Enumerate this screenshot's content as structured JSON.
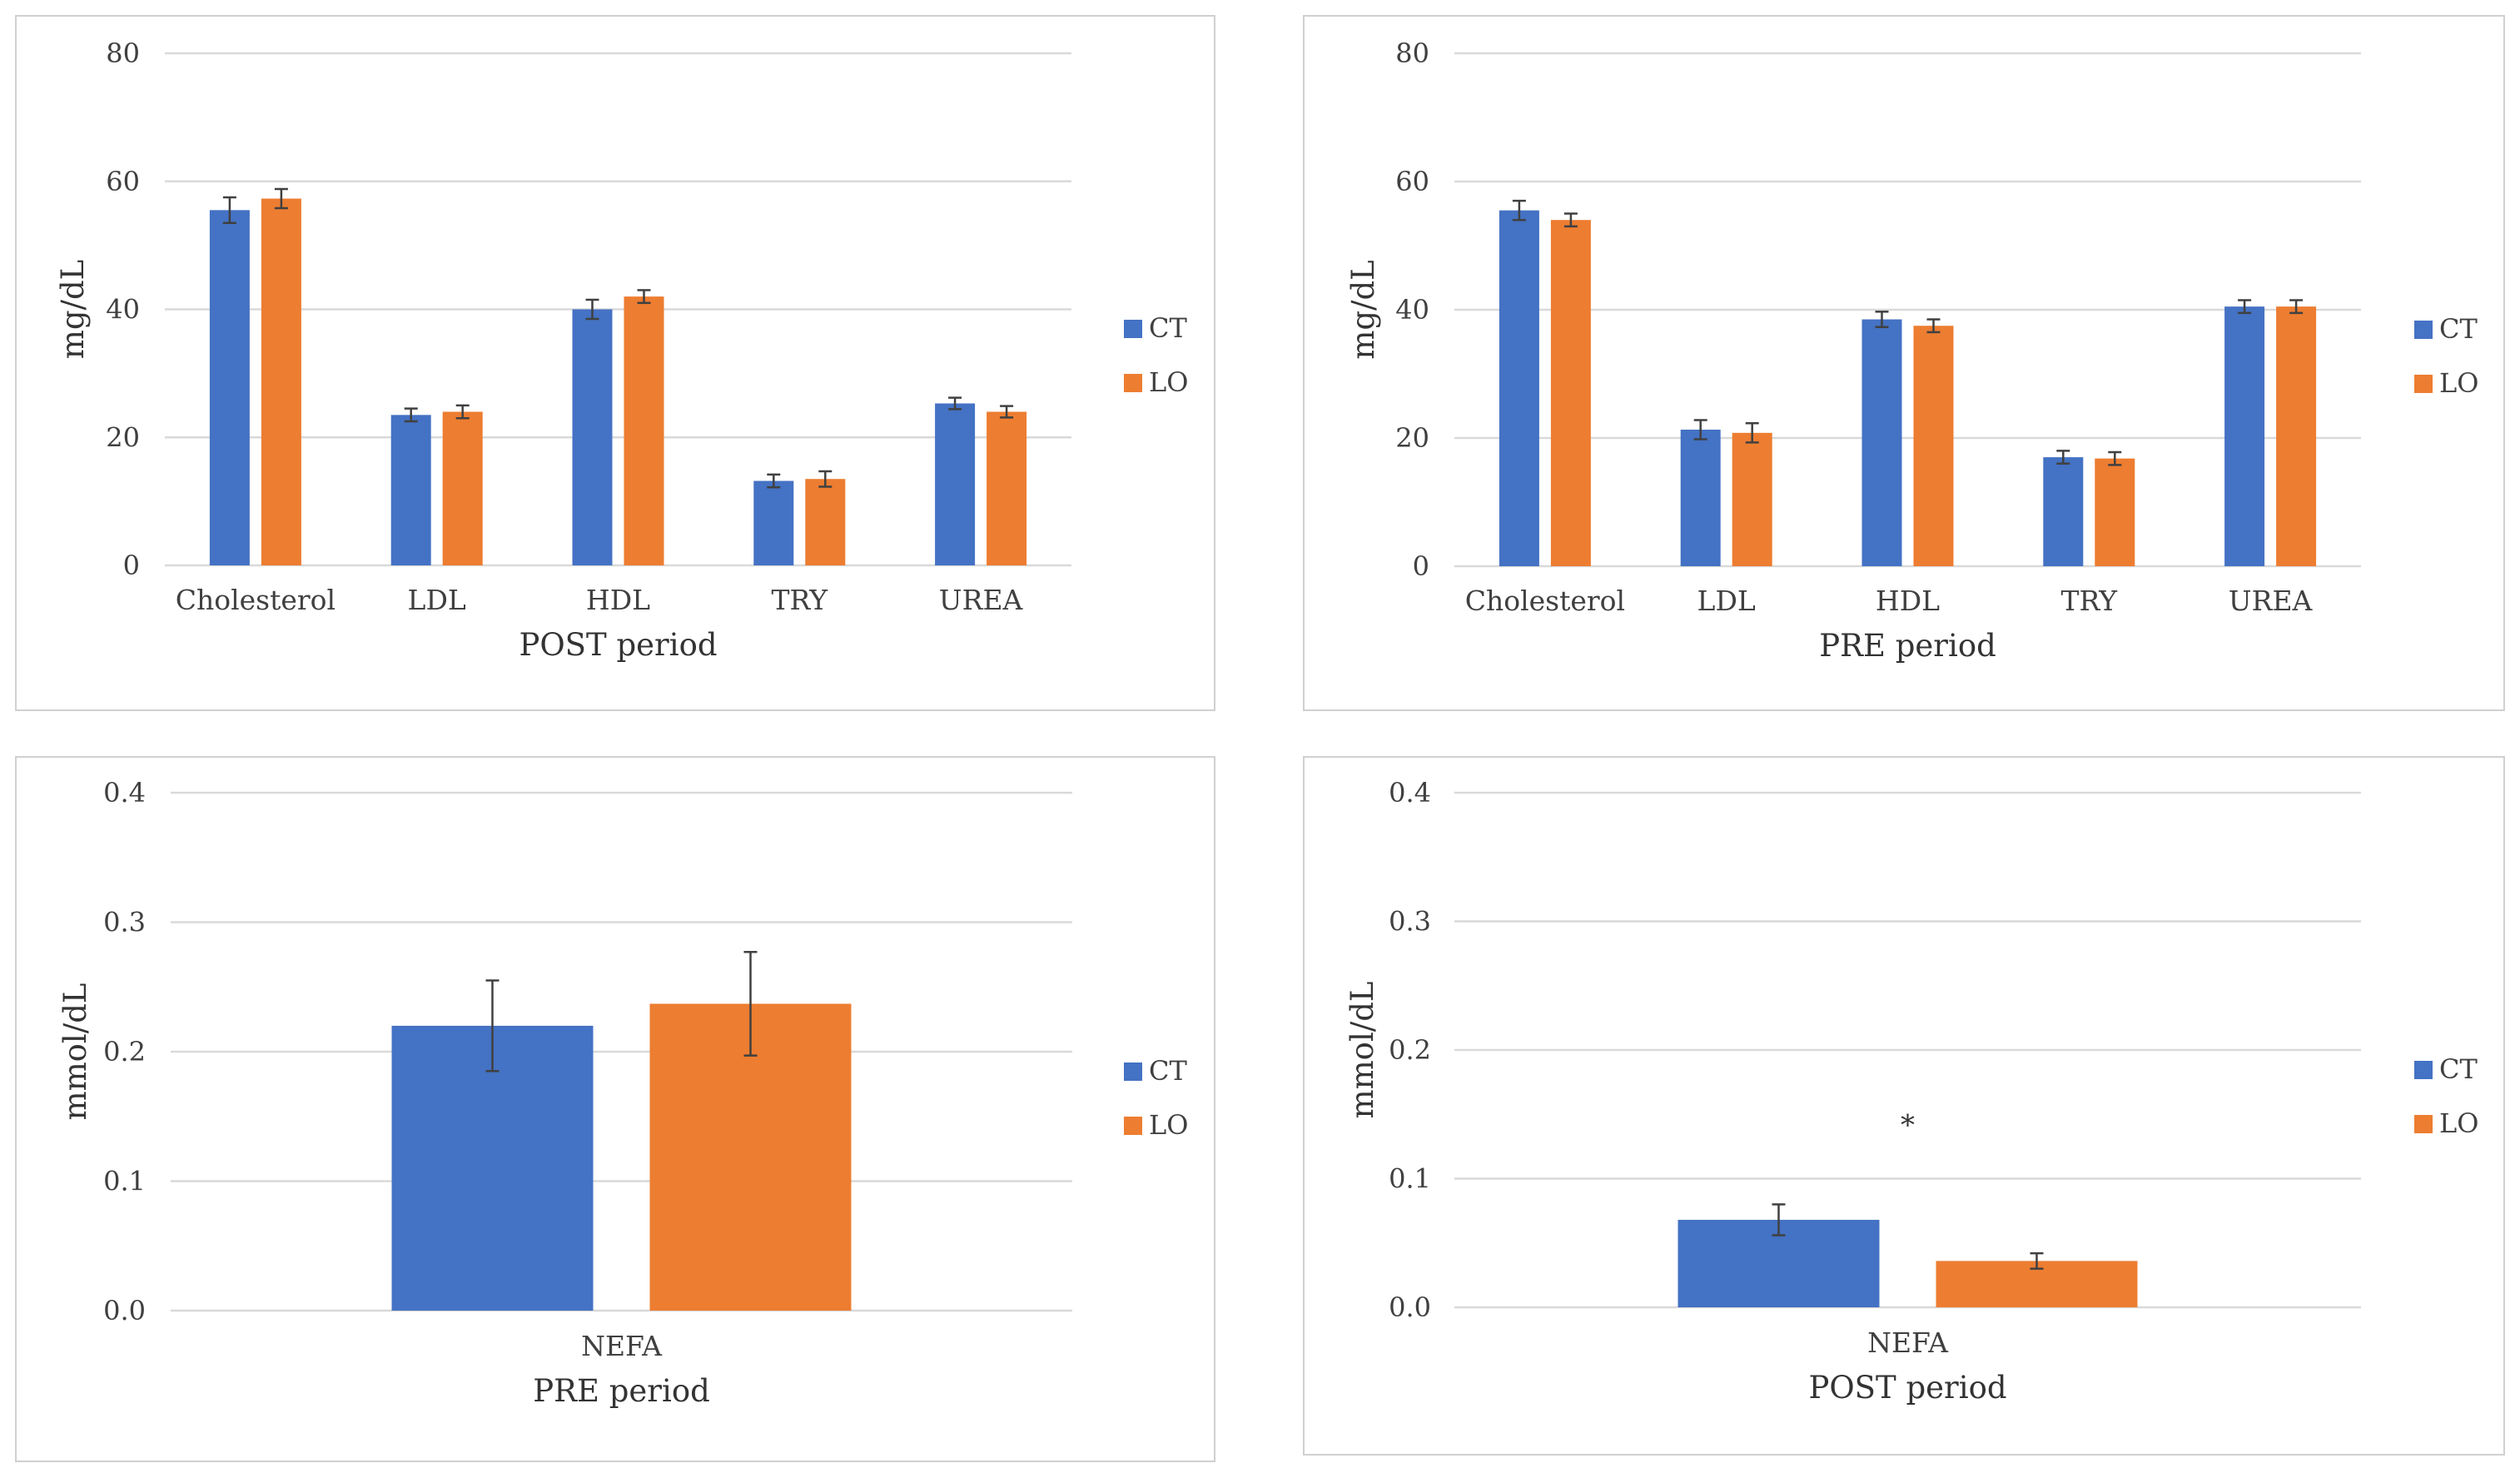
{
  "colors": {
    "CT": "#4472C4",
    "LO": "#ED7D31",
    "grid": "#D9D9D9",
    "errorbar": "#404040"
  },
  "chart_data": [
    {
      "type": "bar",
      "categories": [
        "Cholesterol",
        "LDL",
        "HDL",
        "TRY",
        "UREA"
      ],
      "series": [
        {
          "name": "CT",
          "values": [
            55.5,
            23.5,
            40.0,
            13.2,
            25.3
          ],
          "errors": [
            2.0,
            1.0,
            1.5,
            1.0,
            0.9
          ]
        },
        {
          "name": "LO",
          "values": [
            57.3,
            24.0,
            42.0,
            13.5,
            24.0
          ],
          "errors": [
            1.5,
            1.0,
            1.0,
            1.2,
            0.9
          ]
        }
      ],
      "xlabel": "POST period",
      "ylabel": "mg/dL",
      "ylim": [
        0,
        80
      ],
      "yticks": [
        "0",
        "20",
        "40",
        "60",
        "80"
      ],
      "grid": true,
      "legend_position": "right",
      "annotations": []
    },
    {
      "type": "bar",
      "categories": [
        "Cholesterol",
        "LDL",
        "HDL",
        "TRY",
        "UREA"
      ],
      "series": [
        {
          "name": "CT",
          "values": [
            55.5,
            21.3,
            38.5,
            17.0,
            40.5
          ],
          "errors": [
            1.5,
            1.5,
            1.2,
            1.0,
            1.0
          ]
        },
        {
          "name": "LO",
          "values": [
            54.0,
            20.8,
            37.5,
            16.8,
            40.5
          ],
          "errors": [
            1.0,
            1.5,
            1.0,
            1.0,
            1.0
          ]
        }
      ],
      "xlabel": "PRE period",
      "ylabel": "mg/dL",
      "ylim": [
        0,
        80
      ],
      "yticks": [
        "0",
        "20",
        "40",
        "60",
        "80"
      ],
      "grid": true,
      "legend_position": "right",
      "annotations": []
    },
    {
      "type": "bar",
      "categories": [
        "NEFA"
      ],
      "series": [
        {
          "name": "CT",
          "values": [
            0.22
          ],
          "errors": [
            0.035
          ]
        },
        {
          "name": "LO",
          "values": [
            0.237
          ],
          "errors": [
            0.04
          ]
        }
      ],
      "xlabel": "PRE period",
      "ylabel": "mmol/dL",
      "ylim": [
        0,
        0.4
      ],
      "yticks": [
        "0.0",
        "0.1",
        "0.2",
        "0.3",
        "0.4"
      ],
      "grid": true,
      "legend_position": "right",
      "annotations": []
    },
    {
      "type": "bar",
      "categories": [
        "NEFA"
      ],
      "series": [
        {
          "name": "CT",
          "values": [
            0.068
          ],
          "errors": [
            0.012
          ]
        },
        {
          "name": "LO",
          "values": [
            0.036
          ],
          "errors": [
            0.006
          ]
        }
      ],
      "xlabel": "POST period",
      "ylabel": "mmol/dL",
      "ylim": [
        0,
        0.4
      ],
      "yticks": [
        "0.0",
        "0.1",
        "0.2",
        "0.3",
        "0.4"
      ],
      "grid": true,
      "legend_position": "right",
      "annotations": [
        {
          "text": "*",
          "category": "NEFA",
          "y": 0.142
        }
      ]
    }
  ]
}
